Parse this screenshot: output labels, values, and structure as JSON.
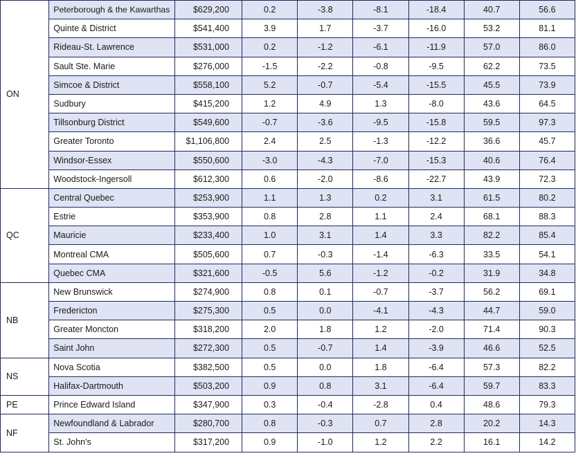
{
  "groups": [
    {
      "province": "ON",
      "rows": [
        {
          "region": "Peterborough & the Kawarthas",
          "values": [
            "$629,200",
            "0.2",
            "-3.8",
            "-8.1",
            "-18.4",
            "40.7",
            "56.6"
          ]
        },
        {
          "region": "Quinte & District",
          "values": [
            "$541,400",
            "3.9",
            "1.7",
            "-3.7",
            "-16.0",
            "53.2",
            "81.1"
          ]
        },
        {
          "region": "Rideau-St. Lawrence",
          "values": [
            "$531,000",
            "0.2",
            "-1.2",
            "-6.1",
            "-11.9",
            "57.0",
            "86.0"
          ]
        },
        {
          "region": "Sault Ste. Marie",
          "values": [
            "$276,000",
            "-1.5",
            "-2.2",
            "-0.8",
            "-9.5",
            "62.2",
            "73.5"
          ]
        },
        {
          "region": "Simcoe & District",
          "values": [
            "$558,100",
            "5.2",
            "-0.7",
            "-5.4",
            "-15.5",
            "45.5",
            "73.9"
          ]
        },
        {
          "region": "Sudbury",
          "values": [
            "$415,200",
            "1.2",
            "4.9",
            "1.3",
            "-8.0",
            "43.6",
            "64.5"
          ]
        },
        {
          "region": "Tillsonburg District",
          "values": [
            "$549,600",
            "-0.7",
            "-3.6",
            "-9.5",
            "-15.8",
            "59.5",
            "97.3"
          ]
        },
        {
          "region": "Greater Toronto",
          "values": [
            "$1,106,800",
            "2.4",
            "2.5",
            "-1.3",
            "-12.2",
            "36.6",
            "45.7"
          ]
        },
        {
          "region": "Windsor-Essex",
          "values": [
            "$550,600",
            "-3.0",
            "-4.3",
            "-7.0",
            "-15.3",
            "40.6",
            "76.4"
          ]
        },
        {
          "region": "Woodstock-Ingersoll",
          "values": [
            "$612,300",
            "0.6",
            "-2.0",
            "-8.6",
            "-22.7",
            "43.9",
            "72.3"
          ]
        }
      ]
    },
    {
      "province": "QC",
      "rows": [
        {
          "region": "Central Quebec",
          "values": [
            "$253,900",
            "1.1",
            "1.3",
            "0.2",
            "3.1",
            "61.5",
            "80.2"
          ]
        },
        {
          "region": "Estrie",
          "values": [
            "$353,900",
            "0.8",
            "2.8",
            "1.1",
            "2.4",
            "68.1",
            "88.3"
          ]
        },
        {
          "region": "Mauricie",
          "values": [
            "$233,400",
            "1.0",
            "3.1",
            "1.4",
            "3.3",
            "82.2",
            "85.4"
          ]
        },
        {
          "region": "Montreal CMA",
          "values": [
            "$505,600",
            "0.7",
            "-0.3",
            "-1.4",
            "-6.3",
            "33.5",
            "54.1"
          ]
        },
        {
          "region": "Quebec CMA",
          "values": [
            "$321,600",
            "-0.5",
            "5.6",
            "-1.2",
            "-0.2",
            "31.9",
            "34.8"
          ]
        }
      ]
    },
    {
      "province": "NB",
      "rows": [
        {
          "region": "New Brunswick",
          "values": [
            "$274,900",
            "0.8",
            "0.1",
            "-0.7",
            "-3.7",
            "56.2",
            "69.1"
          ]
        },
        {
          "region": "Fredericton",
          "values": [
            "$275,300",
            "0.5",
            "0.0",
            "-4.1",
            "-4.3",
            "44.7",
            "59.0"
          ]
        },
        {
          "region": "Greater Moncton",
          "values": [
            "$318,200",
            "2.0",
            "1.8",
            "1.2",
            "-2.0",
            "71.4",
            "90.3"
          ]
        },
        {
          "region": "Saint John",
          "values": [
            "$272,300",
            "0.5",
            "-0.7",
            "1.4",
            "-3.9",
            "46.6",
            "52.5"
          ]
        }
      ]
    },
    {
      "province": "NS",
      "rows": [
        {
          "region": "Nova Scotia",
          "values": [
            "$382,500",
            "0.5",
            "0.0",
            "1.8",
            "-6.4",
            "57.3",
            "82.2"
          ]
        },
        {
          "region": "Halifax-Dartmouth",
          "values": [
            "$503,200",
            "0.9",
            "0.8",
            "3.1",
            "-6.4",
            "59.7",
            "83.3"
          ]
        }
      ]
    },
    {
      "province": "PE",
      "rows": [
        {
          "region": "Prince Edward Island",
          "values": [
            "$347,900",
            "0.3",
            "-0.4",
            "-2.8",
            "0.4",
            "48.6",
            "79.3"
          ]
        }
      ]
    },
    {
      "province": "NF",
      "rows": [
        {
          "region": "Newfoundland & Labrador",
          "values": [
            "$280,700",
            "0.8",
            "-0.3",
            "0.7",
            "2.8",
            "20.2",
            "14.3"
          ]
        },
        {
          "region": "St. John's",
          "values": [
            "$317,200",
            "0.9",
            "-1.0",
            "1.2",
            "2.2",
            "16.1",
            "14.2"
          ]
        }
      ]
    }
  ],
  "colors": {
    "shaded_row": "#dfe3f3",
    "border": "#1e2a5a",
    "text": "#1a1a1a"
  }
}
